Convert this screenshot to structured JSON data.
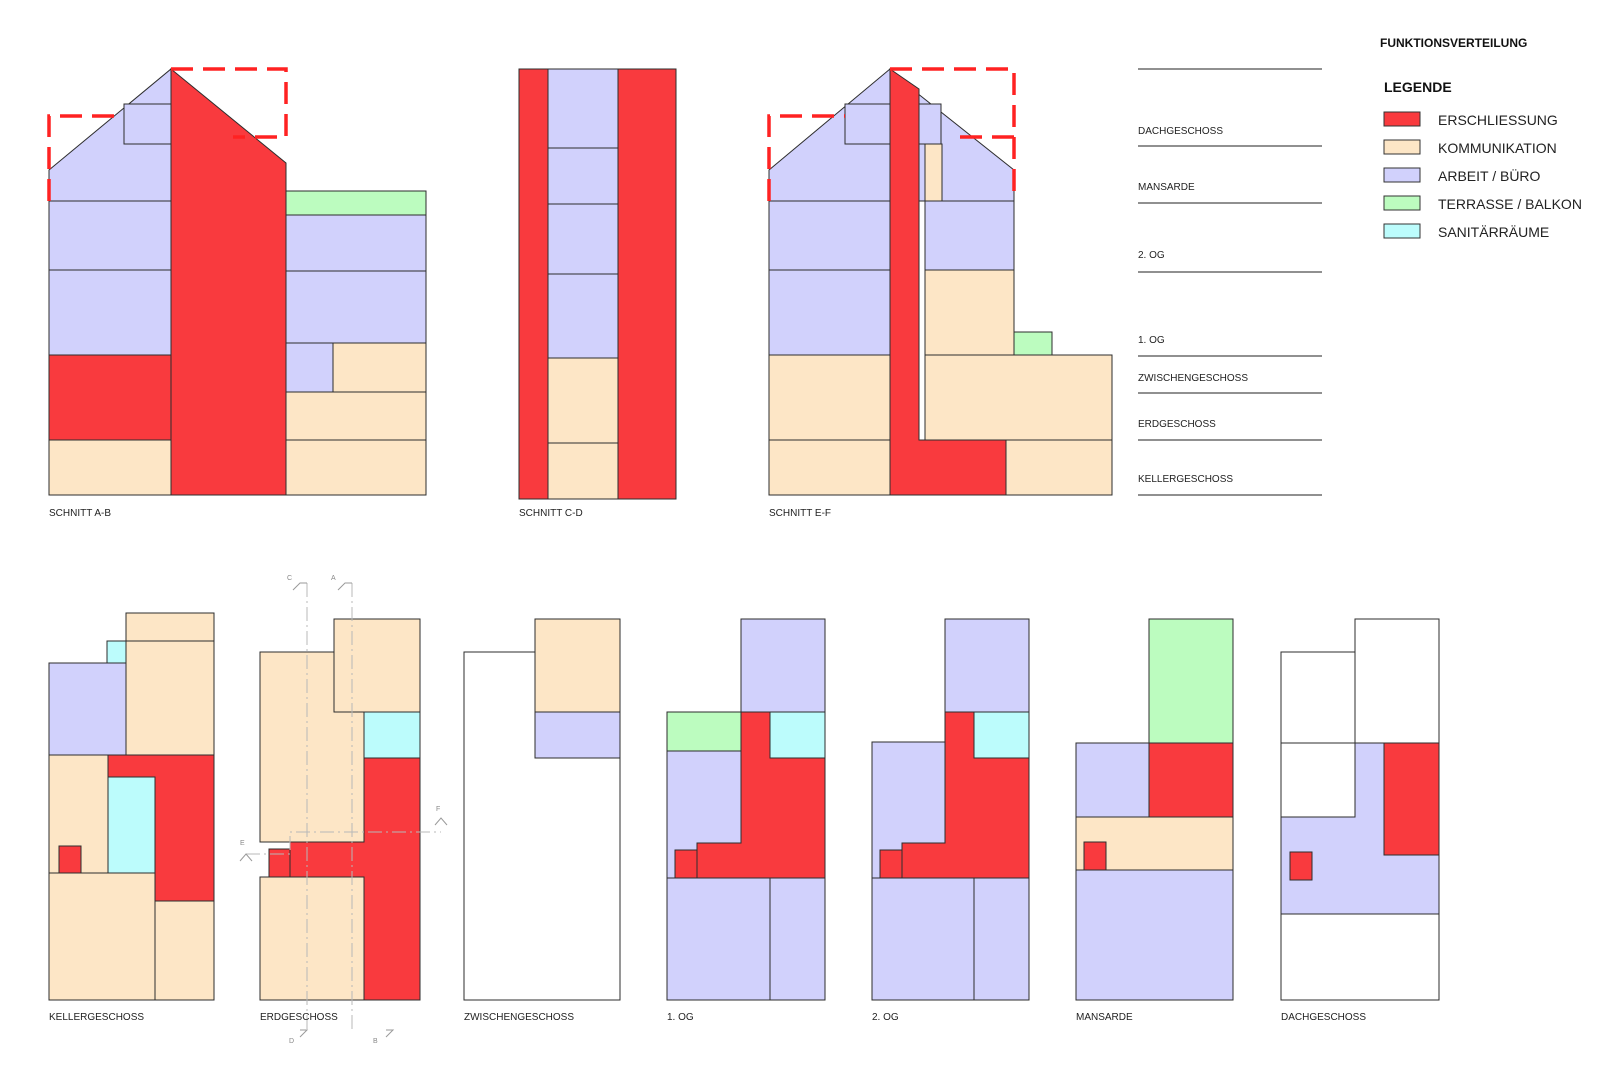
{
  "title": "FUNKTIONSVERTEILUNG",
  "legend": {
    "heading": "LEGENDE",
    "items": [
      {
        "label": "ERSCHLIESSUNG",
        "color": "#f93a3e"
      },
      {
        "label": "KOMMUNIKATION",
        "color": "#fde6c6"
      },
      {
        "label": "ARBEIT / BÜRO",
        "color": "#d1d1fc"
      },
      {
        "label": "TERRASSE / BALKON",
        "color": "#bcfcbf"
      },
      {
        "label": "SANITÄRRÄUME",
        "color": "#bcfcfc"
      }
    ]
  },
  "levels": [
    "DACHGESCHOSS",
    "MANSARDE",
    "2. OG",
    "1. OG",
    "ZWISCHENGESCHOSS",
    "ERDGESCHOSS",
    "KELLERGESCHOSS"
  ],
  "sections": [
    "SCHNITT A-B",
    "SCHNITT C-D",
    "SCHNITT E-F"
  ],
  "plans": [
    "KELLERGESCHOSS",
    "ERDGESCHOSS",
    "ZWISCHENGESCHOSS",
    "1. OG",
    "2. OG",
    "MANSARDE",
    "DACHGESCHOSS"
  ],
  "cut_markers": [
    "C",
    "A",
    "E",
    "F",
    "D",
    "B"
  ]
}
